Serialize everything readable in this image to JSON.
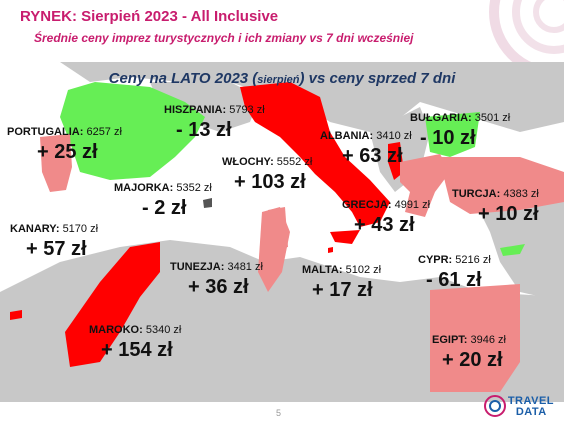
{
  "header": {
    "title": "RYNEK: Sierpień 2023 - All Inclusive",
    "subtitle": "Średnie ceny imprez turystycznych i ich zmiany vs 7 dni wcześniej"
  },
  "map": {
    "heading_main": "Ceny na LATO 2023 (",
    "heading_small": "sierpień",
    "heading_tail": ") vs ceny sprzed 7 dni"
  },
  "colors": {
    "increase": "#ff0000",
    "decrease": "#66ee55",
    "small_increase": "#f08a8a",
    "land": "#c8c8c8",
    "brand": "#c81d6e",
    "heading": "#1f3864"
  },
  "destinations": [
    {
      "key": "hiszpania",
      "name": "HISZPANIA:",
      "price": "5793 zł",
      "delta": "- 13 zł"
    },
    {
      "key": "portugalia",
      "name": "PORTUGALIA:",
      "price": "6257 zł",
      "delta": "+ 25 zł"
    },
    {
      "key": "albania",
      "name": "ALBANIA:",
      "price": "3410 zł",
      "delta": "+ 63 zł"
    },
    {
      "key": "bulgaria",
      "name": "BUŁGARIA:",
      "price": "3501 zł",
      "delta": "- 10 zł"
    },
    {
      "key": "wlochy",
      "name": "WŁOCHY:",
      "price": "5552 zł",
      "delta": "+ 103 zł"
    },
    {
      "key": "majorka",
      "name": "MAJORKA:",
      "price": "5352 zł",
      "delta": "- 2 zł"
    },
    {
      "key": "turcja",
      "name": "TURCJA:",
      "price": "4383 zł",
      "delta": "+ 10 zł"
    },
    {
      "key": "grecja",
      "name": "GRECJA:",
      "price": "4991 zł",
      "delta": "+ 43 zł"
    },
    {
      "key": "kanary",
      "name": "KANARY:",
      "price": "5170 zł",
      "delta": "+ 57 zł"
    },
    {
      "key": "tunezja",
      "name": "TUNEZJA:",
      "price": "3481 zł",
      "delta": "+ 36 zł"
    },
    {
      "key": "malta",
      "name": "MALTA:",
      "price": "5102 zł",
      "delta": "+ 17 zł"
    },
    {
      "key": "cypr",
      "name": "CYPR:",
      "price": "5216 zł",
      "delta": "- 61 zł"
    },
    {
      "key": "maroko",
      "name": "MAROKO:",
      "price": "5340 zł",
      "delta": "+ 154 zł"
    },
    {
      "key": "egipt",
      "name": "EGIPT:",
      "price": "3946 zł",
      "delta": "+ 20 zł"
    }
  ],
  "footer": {
    "page_number": "5",
    "logo_line1": "TRAVEL",
    "logo_line2": "DATA"
  }
}
